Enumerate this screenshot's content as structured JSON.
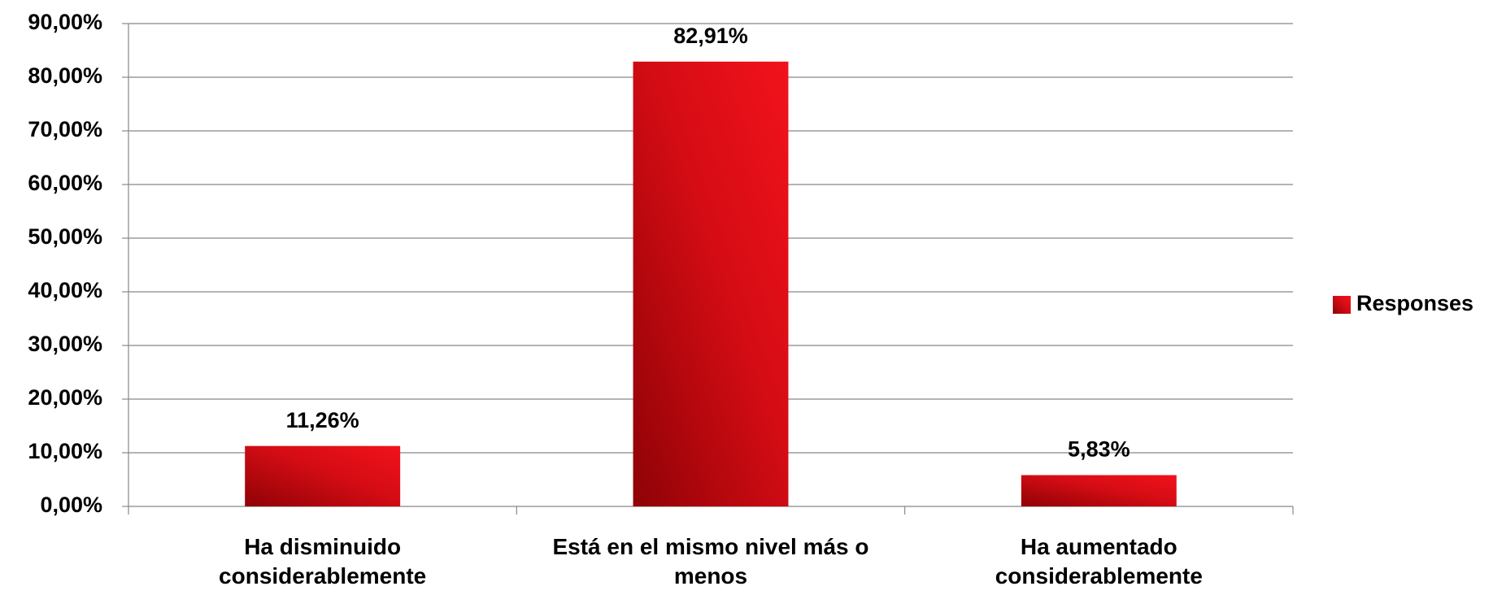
{
  "chart_data": {
    "type": "bar",
    "categories": [
      "Ha disminuido considerablemente",
      "Está en el mismo nivel más o menos",
      "Ha aumentado considerablemente"
    ],
    "series": [
      {
        "name": "Responses",
        "color": "#e8101a",
        "values": [
          11.26,
          82.91,
          5.83
        ],
        "value_labels": [
          "11,26%",
          "82,91%",
          "5,83%"
        ]
      }
    ],
    "ylim": [
      0,
      90
    ],
    "yticks": [
      {
        "value": 0,
        "label": "0,00%"
      },
      {
        "value": 10,
        "label": "10,00%"
      },
      {
        "value": 20,
        "label": "20,00%"
      },
      {
        "value": 30,
        "label": "30,00%"
      },
      {
        "value": 40,
        "label": "40,00%"
      },
      {
        "value": 50,
        "label": "50,00%"
      },
      {
        "value": 60,
        "label": "60,00%"
      },
      {
        "value": 70,
        "label": "70,00%"
      },
      {
        "value": 80,
        "label": "80,00%"
      },
      {
        "value": 90,
        "label": "90,00%"
      }
    ],
    "grid": true,
    "legend": "right"
  }
}
